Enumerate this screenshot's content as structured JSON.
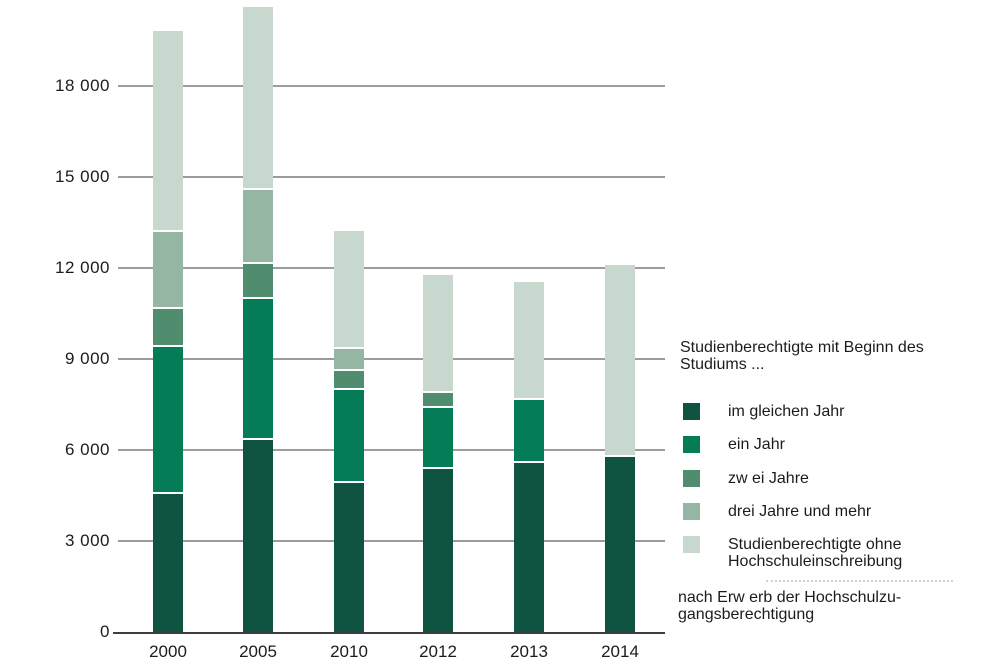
{
  "chart_data": {
    "type": "bar",
    "stacked": true,
    "categories": [
      "2000",
      "2005",
      "2010",
      "2012",
      "2013",
      "2014"
    ],
    "series": [
      {
        "name": "im gleichen Jahr",
        "color": "#0e5441",
        "label_lines": [
          "im gleichen Jahr"
        ],
        "values": [
          4600,
          6400,
          4980,
          5450,
          5640,
          5850
        ]
      },
      {
        "name": "ein Jahr",
        "color": "#047c55",
        "label_lines": [
          "ein Jahr"
        ],
        "values": [
          4850,
          4650,
          3070,
          2000,
          2090,
          0
        ]
      },
      {
        "name": "zwei Jahre",
        "color": "#4f8d6e",
        "label_lines": [
          "zw ei Jahre"
        ],
        "values": [
          1250,
          1150,
          630,
          490,
          0,
          0
        ]
      },
      {
        "name": "drei Jahre und mehr",
        "color": "#94b6a3",
        "label_lines": [
          "drei Jahre und mehr"
        ],
        "values": [
          2550,
          2450,
          700,
          0,
          0,
          0
        ]
      },
      {
        "name": "Studienberechtigte ohne Hochschuleinschreibung",
        "color": "#c9d8ce",
        "label_lines": [
          "Studienberechtigte ohne",
          "Hochschuleinschreibung"
        ],
        "values": [
          6550,
          5950,
          3830,
          3820,
          3810,
          6260
        ]
      }
    ],
    "totals": [
      19800,
      20600,
      13210,
      11760,
      11540,
      12110
    ],
    "ylim": [
      0,
      21000
    ],
    "yticks": [
      0,
      3000,
      6000,
      9000,
      12000,
      15000,
      18000
    ],
    "ytick_labels": [
      "0",
      "3 000",
      "6 000",
      "9 000",
      "12 000",
      "15 000",
      "18 000"
    ],
    "grid": true,
    "legend_position": "right",
    "xlabel": "",
    "ylabel": ""
  },
  "legend": {
    "title_line1": "Studienberechtigte mit Beginn des",
    "title_line2": "Studiums ...",
    "footnote_line1": "nach Erw erb der Hochschulzu-",
    "footnote_line2": "gangsberechtigung"
  }
}
